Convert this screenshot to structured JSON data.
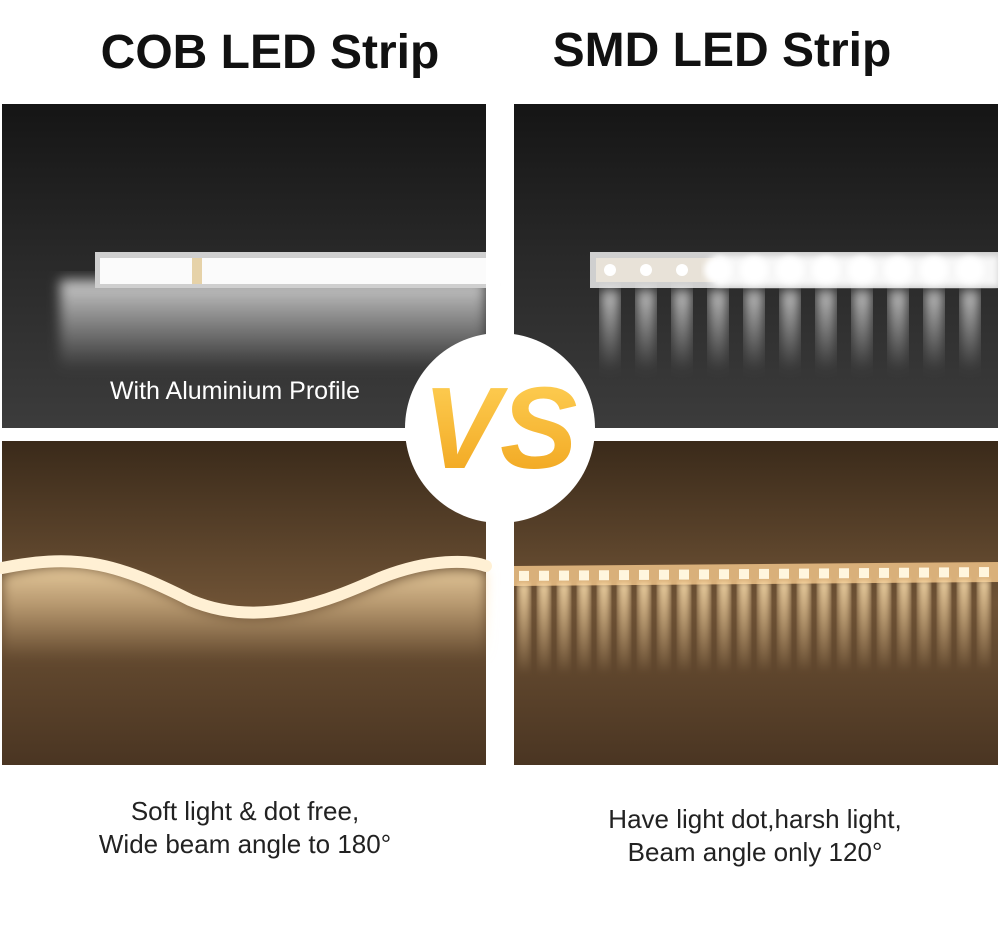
{
  "left": {
    "title": "COB LED Strip",
    "photo_caption": "With Aluminium Profile",
    "description": [
      "Soft light & dot free,",
      "Wide beam angle to 180°"
    ]
  },
  "right": {
    "title": "SMD LED Strip",
    "description": [
      "Have light dot,harsh light,",
      "Beam angle only 120°"
    ]
  },
  "badge": "VS"
}
